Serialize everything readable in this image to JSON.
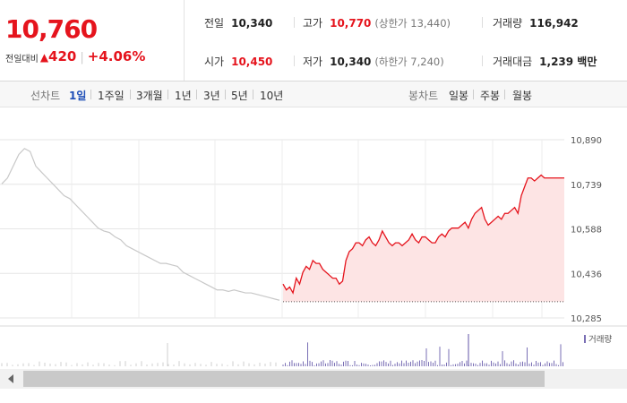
{
  "quote": {
    "price": "10,760",
    "diff_label": "전일대비",
    "diff_arrow": "▲",
    "diff_value": "420",
    "diff_sep": "|",
    "diff_pct": "+4.06%"
  },
  "stats": {
    "prev_close_label": "전일",
    "prev_close": "10,340",
    "high_label": "고가",
    "high": "10,770",
    "upper_limit": "(상한가 13,440)",
    "volume_label": "거래량",
    "volume": "116,942",
    "open_label": "시가",
    "open": "10,450",
    "low_label": "저가",
    "low": "10,340",
    "lower_limit": "(하한가 7,240)",
    "amount_label": "거래대금",
    "amount": "1,239 백만"
  },
  "toolbar": {
    "line_label": "선차트",
    "line_periods": [
      "1일",
      "1주일",
      "3개월",
      "1년",
      "3년",
      "5년",
      "10년"
    ],
    "candle_label": "봉차트",
    "candle_periods": [
      "일봉",
      "주봉",
      "월봉"
    ]
  },
  "colors": {
    "up": "#e5141d",
    "fill": "#fde4e4",
    "prev_day": "#c8c8c8",
    "volume": "#7a6fb5",
    "grid": "#e6e6e6"
  },
  "chart_data": {
    "type": "line",
    "y_ticks": [
      "10,890",
      "10,739",
      "10,588",
      "10,436",
      "10,285"
    ],
    "y_range": [
      10285,
      10890
    ],
    "base_value": 10340,
    "volume_legend": "거래량",
    "series": [
      {
        "values": [
          10740,
          10760,
          10800,
          10840,
          10860,
          10850,
          10800,
          10780,
          10760,
          10740,
          10720,
          10700,
          10690,
          10670,
          10650,
          10630,
          10610,
          10590,
          10580,
          10575,
          10560,
          10550,
          10530,
          10520,
          10510,
          10500,
          10490,
          10480,
          10470,
          10470,
          10465,
          10460,
          10440,
          10430,
          10420,
          10410,
          10400,
          10390,
          10380,
          10380,
          10375,
          10380,
          10375,
          10370,
          10370,
          10365,
          10360,
          10355,
          10350,
          10345
        ]
      },
      {
        "values": [
          10400,
          10380,
          10390,
          10370,
          10420,
          10400,
          10440,
          10460,
          10450,
          10480,
          10470,
          10470,
          10450,
          10440,
          10430,
          10420,
          10420,
          10400,
          10410,
          10480,
          10510,
          10520,
          10540,
          10540,
          10530,
          10550,
          10560,
          10540,
          10530,
          10550,
          10580,
          10560,
          10540,
          10530,
          10540,
          10540,
          10530,
          10540,
          10550,
          10570,
          10550,
          10540,
          10560,
          10560,
          10550,
          10540,
          10540,
          10560,
          10570,
          10560,
          10580,
          10590,
          10590,
          10590,
          10600,
          10610,
          10590,
          10620,
          10640,
          10650,
          10660,
          10620,
          10600,
          10610,
          10620,
          10630,
          10620,
          10640,
          10640,
          10650,
          10660,
          10640,
          10700,
          10730,
          10760,
          10760,
          10750,
          10760,
          10770,
          10760,
          10760,
          10760,
          10760,
          10760,
          10760,
          10760
        ]
      }
    ]
  }
}
